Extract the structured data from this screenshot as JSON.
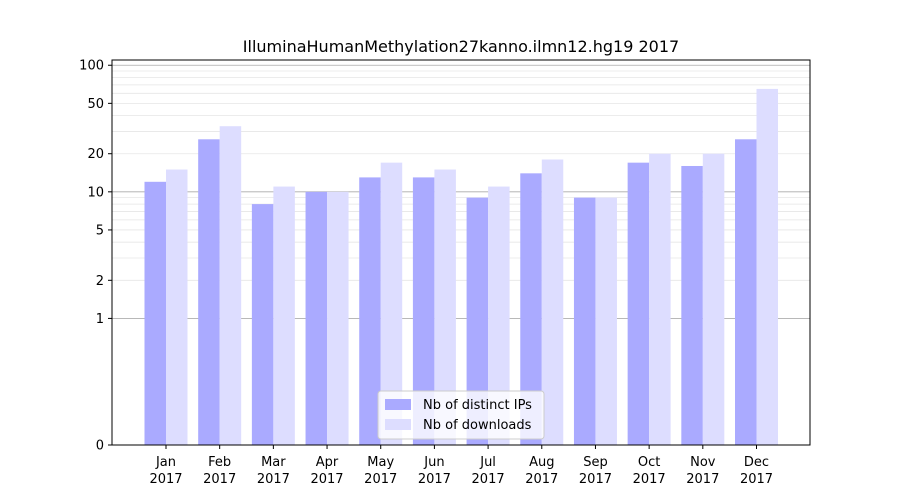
{
  "chart_data": {
    "type": "bar",
    "title": "IlluminaHumanMethylation27kanno.ilmn12.hg19 2017",
    "xlabel": "",
    "ylabel": "",
    "categories": [
      [
        "Jan",
        "2017"
      ],
      [
        "Feb",
        "2017"
      ],
      [
        "Mar",
        "2017"
      ],
      [
        "Apr",
        "2017"
      ],
      [
        "May",
        "2017"
      ],
      [
        "Jun",
        "2017"
      ],
      [
        "Jul",
        "2017"
      ],
      [
        "Aug",
        "2017"
      ],
      [
        "Sep",
        "2017"
      ],
      [
        "Oct",
        "2017"
      ],
      [
        "Nov",
        "2017"
      ],
      [
        "Dec",
        "2017"
      ]
    ],
    "series": [
      {
        "name": "Nb of distinct IPs",
        "color": "#aaaaff",
        "values": [
          12,
          26,
          8,
          10,
          13,
          13,
          9,
          14,
          9,
          17,
          16,
          26
        ]
      },
      {
        "name": "Nb of downloads",
        "color": "#ddddff",
        "values": [
          15,
          33,
          11,
          10,
          17,
          15,
          11,
          18,
          9,
          20,
          20,
          65
        ]
      }
    ],
    "y_scale": "symlog",
    "ylim": [
      0,
      110
    ],
    "y_ticks": [
      {
        "value": 0,
        "label": "0"
      },
      {
        "value": 1,
        "label": "1"
      },
      {
        "value": 2,
        "label": "2"
      },
      {
        "value": 5,
        "label": "5"
      },
      {
        "value": 10,
        "label": "10"
      },
      {
        "value": 20,
        "label": "20"
      },
      {
        "value": 50,
        "label": "50"
      },
      {
        "value": 100,
        "label": "100"
      }
    ],
    "grid": true,
    "legend_position": "lower-center"
  }
}
